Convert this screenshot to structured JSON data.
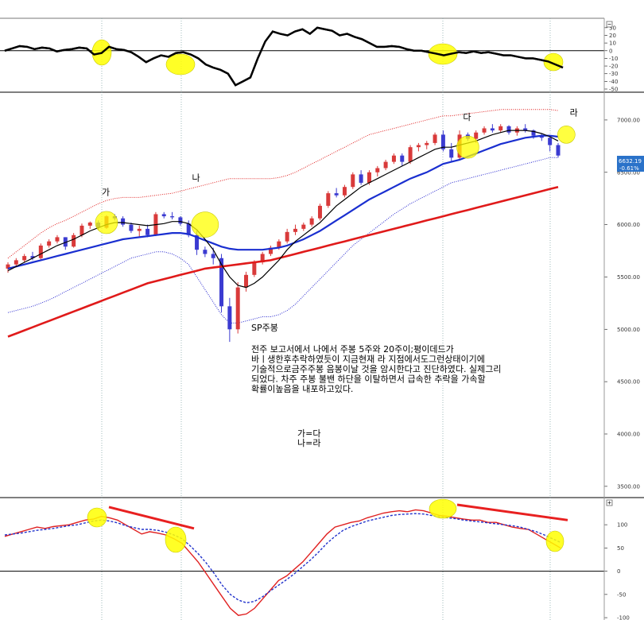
{
  "colors": {
    "up": "#d93a3a",
    "down": "#3b3bd1",
    "ma_short": "#000000",
    "ma_mid": "#1a2fd0",
    "ma_long": "#e01a1a",
    "band": "#e02020",
    "band_low": "#2a2ad0",
    "highlight": "#ffff00",
    "badge": "#2a72c9"
  },
  "chart_data": [
    {
      "type": "line",
      "panel": "oscillator-top",
      "ylim": [
        -50,
        35
      ],
      "yticks": [
        30,
        20,
        10,
        0,
        -10,
        -20,
        -30,
        -40,
        -50
      ],
      "series": [
        {
          "values": [
            0,
            3,
            6,
            5,
            2,
            4,
            3,
            -1,
            1,
            2,
            4,
            3,
            -5,
            -3,
            5,
            2,
            1,
            -2,
            -8,
            -15,
            -10,
            -6,
            -8,
            -3,
            -2,
            -5,
            -10,
            -18,
            -22,
            -25,
            -30,
            -45,
            -40,
            -35,
            -10,
            12,
            25,
            22,
            20,
            25,
            28,
            22,
            30,
            28,
            26,
            20,
            22,
            18,
            15,
            10,
            5,
            5,
            6,
            5,
            2,
            0,
            0,
            -2,
            -4,
            -6,
            -4,
            -2,
            -3,
            -1,
            -3,
            -2,
            -4,
            -6,
            -6,
            -8,
            -10,
            -10,
            -12,
            -14,
            -18,
            -22
          ]
        }
      ],
      "zero_line": 0
    },
    {
      "type": "candlestick",
      "panel": "price",
      "title": "SP주봉",
      "ylim": [
        3400,
        7250
      ],
      "yticks": [
        7000,
        6500,
        6000,
        5500,
        5000,
        4500,
        4000,
        3500
      ],
      "last_price": "6632.19",
      "last_change": "-0.61%",
      "candles": [
        [
          5580,
          5640,
          5540,
          5620
        ],
        [
          5620,
          5680,
          5600,
          5660
        ],
        [
          5660,
          5720,
          5640,
          5700
        ],
        [
          5700,
          5740,
          5660,
          5680
        ],
        [
          5680,
          5820,
          5660,
          5800
        ],
        [
          5800,
          5860,
          5780,
          5840
        ],
        [
          5840,
          5900,
          5820,
          5880
        ],
        [
          5880,
          5880,
          5760,
          5790
        ],
        [
          5790,
          5920,
          5780,
          5900
        ],
        [
          5900,
          6010,
          5880,
          5990
        ],
        [
          5990,
          6030,
          5960,
          6020
        ],
        [
          6020,
          6040,
          5950,
          5970
        ],
        [
          5970,
          6090,
          5960,
          6080
        ],
        [
          6080,
          6100,
          6040,
          6060
        ],
        [
          6060,
          6080,
          5980,
          6000
        ],
        [
          6000,
          6020,
          5920,
          5940
        ],
        [
          5940,
          5990,
          5880,
          5960
        ],
        [
          5960,
          6000,
          5880,
          5900
        ],
        [
          5900,
          6120,
          5890,
          6100
        ],
        [
          6100,
          6120,
          6060,
          6080
        ],
        [
          6080,
          6120,
          6050,
          6070
        ],
        [
          6070,
          6080,
          5990,
          6010
        ],
        [
          6010,
          6040,
          5880,
          5900
        ],
        [
          5900,
          5940,
          5710,
          5760
        ],
        [
          5760,
          5790,
          5690,
          5720
        ],
        [
          5720,
          5780,
          5620,
          5680
        ],
        [
          5680,
          5720,
          5160,
          5220
        ],
        [
          5220,
          5300,
          4880,
          5000
        ],
        [
          5000,
          5450,
          4960,
          5400
        ],
        [
          5400,
          5550,
          5360,
          5520
        ],
        [
          5520,
          5660,
          5500,
          5640
        ],
        [
          5640,
          5740,
          5620,
          5720
        ],
        [
          5720,
          5800,
          5700,
          5780
        ],
        [
          5780,
          5860,
          5760,
          5840
        ],
        [
          5840,
          5960,
          5820,
          5930
        ],
        [
          5930,
          6000,
          5900,
          5960
        ],
        [
          5960,
          6020,
          5940,
          6000
        ],
        [
          6000,
          6080,
          5980,
          6060
        ],
        [
          6060,
          6200,
          6040,
          6180
        ],
        [
          6180,
          6320,
          6160,
          6300
        ],
        [
          6300,
          6350,
          6260,
          6280
        ],
        [
          6280,
          6380,
          6260,
          6360
        ],
        [
          6360,
          6500,
          6340,
          6480
        ],
        [
          6480,
          6520,
          6380,
          6400
        ],
        [
          6400,
          6520,
          6380,
          6500
        ],
        [
          6500,
          6560,
          6460,
          6540
        ],
        [
          6540,
          6620,
          6520,
          6600
        ],
        [
          6600,
          6680,
          6580,
          6660
        ],
        [
          6660,
          6680,
          6560,
          6600
        ],
        [
          6600,
          6760,
          6580,
          6740
        ],
        [
          6740,
          6780,
          6700,
          6760
        ],
        [
          6760,
          6800,
          6720,
          6780
        ],
        [
          6780,
          6880,
          6760,
          6860
        ],
        [
          6860,
          6900,
          6700,
          6720
        ],
        [
          6720,
          6780,
          6600,
          6640
        ],
        [
          6640,
          6900,
          6620,
          6860
        ],
        [
          6860,
          6880,
          6800,
          6820
        ],
        [
          6820,
          6900,
          6780,
          6880
        ],
        [
          6880,
          6940,
          6860,
          6920
        ],
        [
          6920,
          6960,
          6880,
          6900
        ],
        [
          6900,
          6960,
          6880,
          6940
        ],
        [
          6940,
          6950,
          6860,
          6880
        ],
        [
          6880,
          6940,
          6850,
          6920
        ],
        [
          6920,
          6960,
          6880,
          6900
        ],
        [
          6900,
          6910,
          6820,
          6850
        ],
        [
          6850,
          6870,
          6800,
          6830
        ],
        [
          6830,
          6850,
          6700,
          6760
        ],
        [
          6760,
          6780,
          6640,
          6660
        ]
      ],
      "ma_short": [
        5560,
        5600,
        5640,
        5680,
        5720,
        5760,
        5800,
        5830,
        5860,
        5900,
        5940,
        5970,
        6000,
        6020,
        6020,
        6010,
        6000,
        5990,
        6000,
        6010,
        6030,
        6030,
        6010,
        5950,
        5860,
        5760,
        5620,
        5500,
        5420,
        5400,
        5440,
        5500,
        5580,
        5660,
        5760,
        5840,
        5900,
        5960,
        6020,
        6100,
        6180,
        6240,
        6300,
        6360,
        6400,
        6440,
        6480,
        6520,
        6560,
        6600,
        6640,
        6680,
        6720,
        6740,
        6740,
        6760,
        6780,
        6800,
        6830,
        6860,
        6880,
        6900,
        6900,
        6900,
        6890,
        6870,
        6840,
        6800
      ],
      "ma_mid": [
        5580,
        5600,
        5620,
        5640,
        5660,
        5680,
        5700,
        5720,
        5740,
        5760,
        5780,
        5800,
        5820,
        5840,
        5860,
        5870,
        5880,
        5890,
        5900,
        5910,
        5920,
        5920,
        5910,
        5880,
        5850,
        5820,
        5790,
        5770,
        5760,
        5760,
        5760,
        5760,
        5770,
        5780,
        5800,
        5830,
        5860,
        5900,
        5940,
        5990,
        6040,
        6090,
        6140,
        6190,
        6240,
        6280,
        6320,
        6360,
        6400,
        6440,
        6470,
        6500,
        6540,
        6580,
        6600,
        6620,
        6650,
        6680,
        6710,
        6740,
        6770,
        6790,
        6810,
        6830,
        6840,
        6850,
        6850,
        6840
      ],
      "ma_long": [
        4930,
        4960,
        4990,
        5020,
        5050,
        5080,
        5110,
        5140,
        5170,
        5200,
        5230,
        5260,
        5290,
        5320,
        5350,
        5380,
        5410,
        5440,
        5460,
        5480,
        5500,
        5520,
        5540,
        5560,
        5580,
        5590,
        5600,
        5610,
        5620,
        5630,
        5640,
        5650,
        5660,
        5680,
        5700,
        5720,
        5740,
        5760,
        5780,
        5800,
        5820,
        5840,
        5860,
        5880,
        5900,
        5920,
        5940,
        5960,
        5980,
        6000,
        6020,
        6040,
        6060,
        6080,
        6100,
        6120,
        6140,
        6160,
        6180,
        6200,
        6220,
        6240,
        6260,
        6280,
        6300,
        6320,
        6340,
        6360
      ],
      "band_upper": [
        5680,
        5740,
        5800,
        5860,
        5920,
        5970,
        6010,
        6040,
        6080,
        6120,
        6160,
        6200,
        6230,
        6250,
        6260,
        6260,
        6260,
        6270,
        6280,
        6290,
        6300,
        6320,
        6340,
        6360,
        6380,
        6400,
        6420,
        6440,
        6440,
        6440,
        6440,
        6440,
        6440,
        6450,
        6470,
        6500,
        6540,
        6580,
        6620,
        6660,
        6700,
        6740,
        6780,
        6820,
        6860,
        6880,
        6900,
        6920,
        6940,
        6960,
        6980,
        7000,
        7020,
        7040,
        7040,
        7050,
        7060,
        7070,
        7080,
        7090,
        7100,
        7100,
        7100,
        7100,
        7100,
        7100,
        7100,
        7090
      ],
      "band_lower": [
        5160,
        5180,
        5200,
        5220,
        5250,
        5280,
        5320,
        5360,
        5400,
        5440,
        5480,
        5520,
        5560,
        5600,
        5640,
        5680,
        5700,
        5720,
        5740,
        5740,
        5720,
        5680,
        5620,
        5500,
        5380,
        5260,
        5140,
        5060,
        5060,
        5080,
        5100,
        5120,
        5120,
        5140,
        5180,
        5240,
        5320,
        5400,
        5480,
        5560,
        5640,
        5720,
        5800,
        5860,
        5920,
        5980,
        6040,
        6100,
        6150,
        6200,
        6240,
        6280,
        6320,
        6360,
        6400,
        6420,
        6440,
        6460,
        6480,
        6500,
        6520,
        6540,
        6560,
        6580,
        6600,
        6620,
        6640,
        6640
      ],
      "labels": [
        {
          "text": "가",
          "i": 12,
          "value": 6280
        },
        {
          "text": "나",
          "i": 23,
          "value": 6420
        },
        {
          "text": "다",
          "i": 56,
          "value": 7000
        },
        {
          "text": "라",
          "i": 69,
          "value": 7040
        }
      ],
      "annotation": [
        "전주 보고서에서 나에서 주봉 5주와 20주이;평이데드가",
        "바ㅣ생한후추락하였듯이 지금현재 라 지점에서도그런상태이기에",
        "기술적으로금주주봉 음봉이날 것을 암시한다고 진단하였다. 실제그리",
        "되었다. 차주 주봉 불밴 하단을 이탈하면서 급속한 추락을 가속할",
        "확률이높음을 내포하고있다."
      ],
      "legend_notes": [
        "가=다",
        "나=라"
      ]
    },
    {
      "type": "line",
      "panel": "oscillator-bottom",
      "ylim": [
        -105,
        155
      ],
      "yticks": [
        100,
        50,
        0,
        -50,
        -100
      ],
      "zero_line": 0,
      "series": [
        {
          "style": "solid",
          "values": [
            75,
            80,
            85,
            90,
            95,
            92,
            96,
            98,
            100,
            105,
            110,
            112,
            118,
            115,
            110,
            100,
            90,
            80,
            85,
            82,
            78,
            70,
            60,
            40,
            20,
            -5,
            -30,
            -55,
            -80,
            -95,
            -92,
            -80,
            -60,
            -40,
            -20,
            -10,
            5,
            20,
            40,
            60,
            80,
            95,
            100,
            105,
            108,
            115,
            120,
            125,
            128,
            130,
            128,
            132,
            130,
            125,
            120,
            118,
            115,
            112,
            110,
            110,
            105,
            105,
            100,
            95,
            92,
            90,
            80,
            70,
            60,
            50
          ]
        },
        {
          "style": "dashed",
          "values": [
            78,
            80,
            82,
            85,
            88,
            90,
            92,
            95,
            98,
            100,
            104,
            108,
            110,
            108,
            104,
            98,
            94,
            90,
            90,
            88,
            84,
            78,
            70,
            55,
            38,
            18,
            -5,
            -30,
            -50,
            -62,
            -68,
            -65,
            -55,
            -42,
            -30,
            -18,
            -5,
            10,
            25,
            42,
            60,
            75,
            88,
            96,
            102,
            108,
            112,
            116,
            120,
            122,
            123,
            124,
            123,
            120,
            117,
            115,
            113,
            110,
            108,
            106,
            104,
            102,
            100,
            98,
            95,
            90,
            85,
            78,
            70,
            62
          ]
        }
      ],
      "trend_lines": [
        {
          "from": {
            "i": 15,
            "value": 138
          },
          "to": {
            "i": 28,
            "value": 92
          }
        },
        {
          "from": {
            "i": 60,
            "value": 143
          },
          "to": {
            "i": 80,
            "value": 110
          }
        }
      ]
    }
  ]
}
